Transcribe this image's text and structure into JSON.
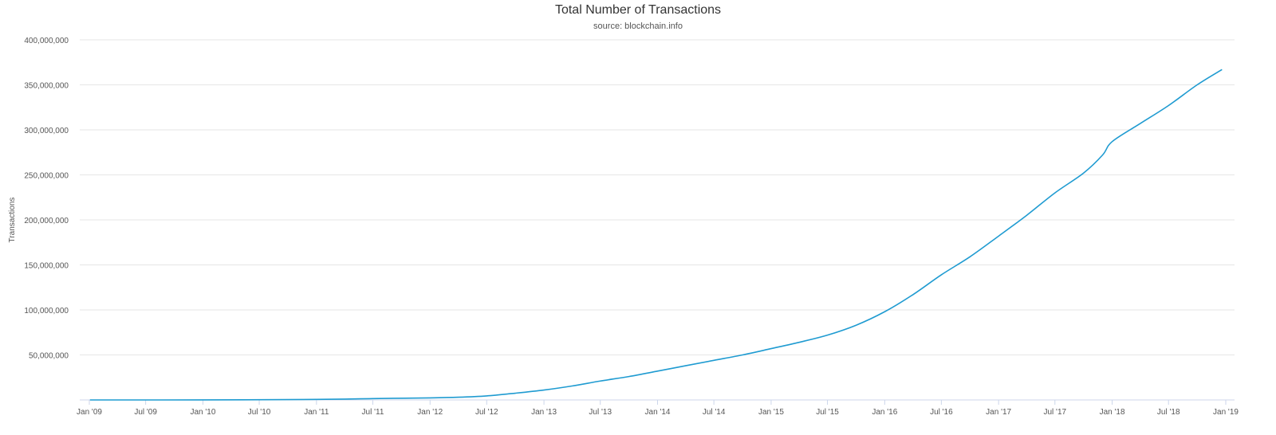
{
  "chart_data": {
    "type": "line",
    "title": "Total Number of Transactions",
    "subtitle": "source: blockchain.info",
    "xlabel": "",
    "ylabel": "Transactions",
    "ylim": [
      0,
      400000000
    ],
    "xlim": [
      "2009-01-01",
      "2019-01-01"
    ],
    "grid": true,
    "legend": "none",
    "line_color": "#1f9bd1",
    "y_ticks": [
      {
        "value": 50000000,
        "label": "50,000,000"
      },
      {
        "value": 100000000,
        "label": "100,000,000"
      },
      {
        "value": 150000000,
        "label": "150,000,000"
      },
      {
        "value": 200000000,
        "label": "200,000,000"
      },
      {
        "value": 250000000,
        "label": "250,000,000"
      },
      {
        "value": 300000000,
        "label": "300,000,000"
      },
      {
        "value": 350000000,
        "label": "350,000,000"
      },
      {
        "value": 400000000,
        "label": "400,000,000"
      }
    ],
    "x_ticks": [
      {
        "date": "2009-01-01",
        "label": "Jan '09"
      },
      {
        "date": "2009-07-01",
        "label": "Jul '09"
      },
      {
        "date": "2010-01-01",
        "label": "Jan '10"
      },
      {
        "date": "2010-07-01",
        "label": "Jul '10"
      },
      {
        "date": "2011-01-01",
        "label": "Jan '11"
      },
      {
        "date": "2011-07-01",
        "label": "Jul '11"
      },
      {
        "date": "2012-01-01",
        "label": "Jan '12"
      },
      {
        "date": "2012-07-01",
        "label": "Jul '12"
      },
      {
        "date": "2013-01-01",
        "label": "Jan '13"
      },
      {
        "date": "2013-07-01",
        "label": "Jul '13"
      },
      {
        "date": "2014-01-01",
        "label": "Jan '14"
      },
      {
        "date": "2014-07-01",
        "label": "Jul '14"
      },
      {
        "date": "2015-01-01",
        "label": "Jan '15"
      },
      {
        "date": "2015-07-01",
        "label": "Jul '15"
      },
      {
        "date": "2016-01-01",
        "label": "Jan '16"
      },
      {
        "date": "2016-07-01",
        "label": "Jul '16"
      },
      {
        "date": "2017-01-01",
        "label": "Jan '17"
      },
      {
        "date": "2017-07-01",
        "label": "Jul '17"
      },
      {
        "date": "2018-01-01",
        "label": "Jan '18"
      },
      {
        "date": "2018-07-01",
        "label": "Jul '18"
      },
      {
        "date": "2019-01-01",
        "label": "Jan '19"
      }
    ],
    "series": [
      {
        "x": [
          "2009-01-03",
          "2010-01-01",
          "2011-01-01",
          "2011-07-01",
          "2012-01-01",
          "2012-04-01",
          "2012-07-01",
          "2012-10-01",
          "2013-01-01",
          "2013-04-01",
          "2013-07-01",
          "2013-10-01",
          "2014-01-01",
          "2014-04-01",
          "2014-07-01",
          "2014-10-01",
          "2015-01-01",
          "2015-04-01",
          "2015-07-01",
          "2015-10-01",
          "2016-01-01",
          "2016-04-01",
          "2016-07-01",
          "2016-10-01",
          "2017-01-01",
          "2017-04-01",
          "2017-07-01",
          "2017-10-01",
          "2017-12-01",
          "2018-01-01",
          "2018-04-01",
          "2018-07-01",
          "2018-10-01",
          "2018-12-20"
        ],
        "y": [
          0,
          50000,
          600000,
          1500000,
          2300000,
          3000000,
          4500000,
          7500000,
          11000000,
          15500000,
          21000000,
          26000000,
          32000000,
          38000000,
          44000000,
          50000000,
          57000000,
          64000000,
          72000000,
          83000000,
          98000000,
          117000000,
          139000000,
          159000000,
          182000000,
          205000000,
          230000000,
          252000000,
          272000000,
          287000000,
          307000000,
          327000000,
          350000000,
          367000000
        ]
      }
    ]
  }
}
